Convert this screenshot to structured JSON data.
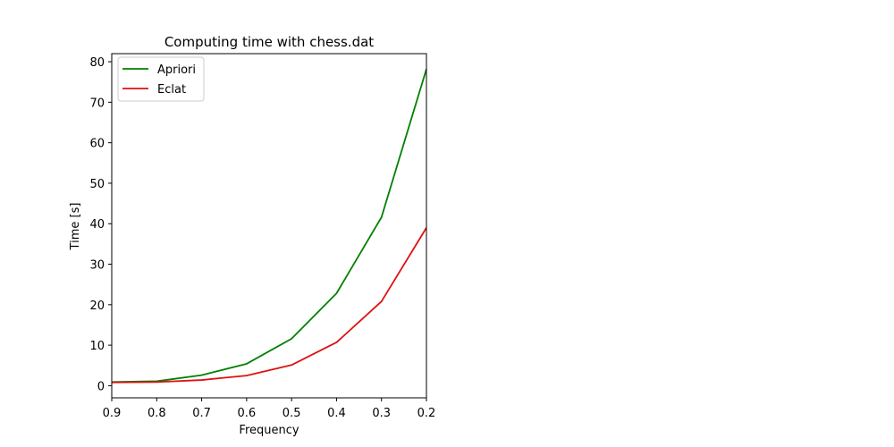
{
  "chart_data": {
    "type": "line",
    "title": "Computing time with chess.dat",
    "xlabel": "Frequency",
    "ylabel": "Time [s]",
    "x": [
      0.9,
      0.8,
      0.7,
      0.6,
      0.5,
      0.4,
      0.3,
      0.2
    ],
    "xlim": [
      0.9,
      0.2
    ],
    "x_ticks": [
      "0.9",
      "0.8",
      "0.7",
      "0.6",
      "0.5",
      "0.4",
      "0.3",
      "0.2"
    ],
    "ylim": [
      -3,
      82
    ],
    "y_ticks": [
      0,
      10,
      20,
      30,
      40,
      50,
      60,
      70,
      80
    ],
    "grid": false,
    "legend_position": "top-left",
    "series": [
      {
        "name": "Apriori",
        "color": "#008000",
        "values": [
          0.9,
          1.1,
          2.6,
          5.4,
          11.6,
          22.8,
          41.6,
          78.2
        ]
      },
      {
        "name": "Eclat",
        "color": "#dd1111",
        "values": [
          0.8,
          0.9,
          1.4,
          2.5,
          5.1,
          10.7,
          20.8,
          39.0
        ]
      }
    ]
  }
}
